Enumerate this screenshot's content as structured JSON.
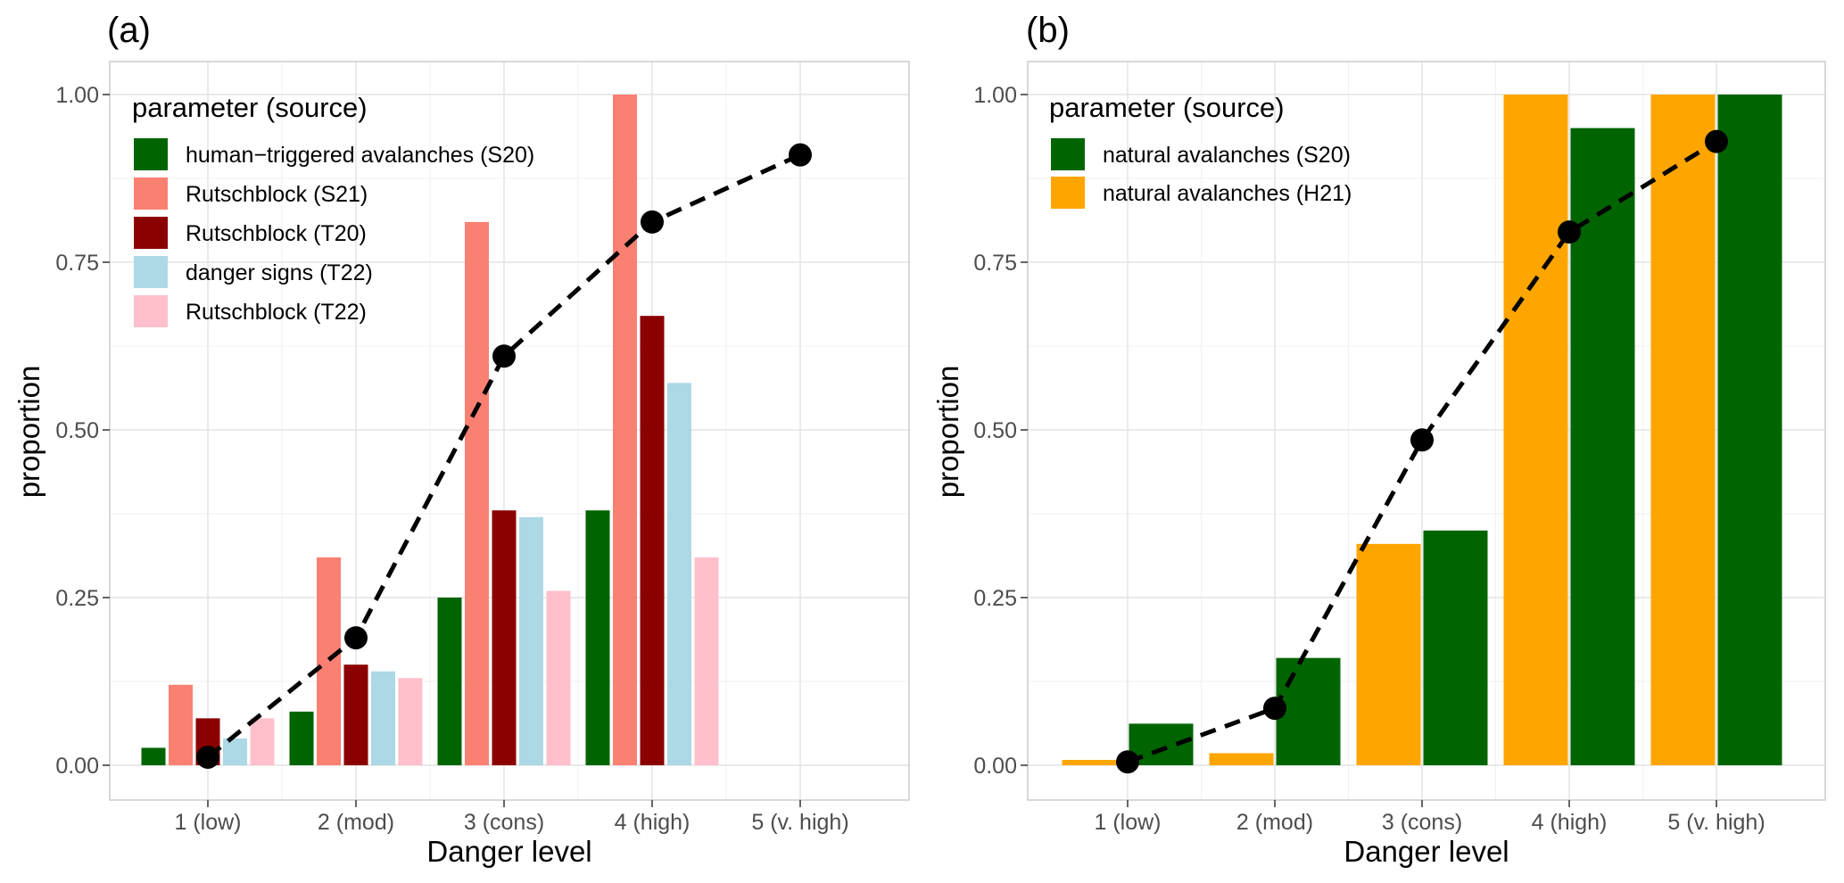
{
  "chart_data": [
    {
      "type": "bar",
      "panel_tag": "(a)",
      "xlabel": "Danger level",
      "ylabel": "proportion",
      "ylim": [
        0,
        1
      ],
      "y_ticks": [
        "0.00",
        "0.25",
        "0.50",
        "0.75",
        "1.00"
      ],
      "categories": [
        "1 (low)",
        "2 (mod)",
        "3 (cons)",
        "4 (high)",
        "5 (v. high)"
      ],
      "legend_title": "parameter (source)",
      "legend_position": "top-left",
      "series": [
        {
          "name": "human−triggered avalanches (S20)",
          "color": "#006400",
          "values": [
            0.026,
            0.08,
            0.25,
            0.38,
            null
          ]
        },
        {
          "name": "Rutschblock (S21)",
          "color": "#FA8072",
          "values": [
            0.12,
            0.31,
            0.81,
            1.0,
            null
          ]
        },
        {
          "name": "Rutschblock (T20)",
          "color": "#8B0000",
          "values": [
            0.07,
            0.15,
            0.38,
            0.67,
            null
          ]
        },
        {
          "name": "danger signs (T22)",
          "color": "#ADD8E6",
          "values": [
            0.04,
            0.14,
            0.37,
            0.57,
            null
          ]
        },
        {
          "name": "Rutschblock (T22)",
          "color": "#FFC0CB",
          "values": [
            0.07,
            0.13,
            0.26,
            0.31,
            null
          ]
        }
      ],
      "line": {
        "style": "dashed",
        "color": "#000000",
        "values": [
          0.012,
          0.19,
          0.61,
          0.81,
          0.91
        ]
      }
    },
    {
      "type": "bar",
      "panel_tag": "(b)",
      "xlabel": "Danger level",
      "ylabel": "proportion",
      "ylim": [
        0,
        1
      ],
      "y_ticks": [
        "0.00",
        "0.25",
        "0.50",
        "0.75",
        "1.00"
      ],
      "categories": [
        "1 (low)",
        "2 (mod)",
        "3 (cons)",
        "4 (high)",
        "5 (v. high)"
      ],
      "legend_title": "parameter (source)",
      "legend_position": "top-left",
      "legend_entries": [
        {
          "name": "natural avalanches (S20)",
          "color": "#006400"
        },
        {
          "name": "natural avalanches (H21)",
          "color": "#FFA500"
        }
      ],
      "series": [
        {
          "name": "natural avalanches (H21)",
          "color": "#FFA500",
          "values": [
            0.008,
            0.018,
            0.33,
            1.0,
            1.0
          ]
        },
        {
          "name": "natural avalanches (S20)",
          "color": "#006400",
          "values": [
            0.062,
            0.16,
            0.35,
            0.95,
            1.0
          ]
        }
      ],
      "line": {
        "style": "dashed",
        "color": "#000000",
        "values": [
          0.005,
          0.085,
          0.485,
          0.795,
          0.93
        ]
      }
    }
  ]
}
